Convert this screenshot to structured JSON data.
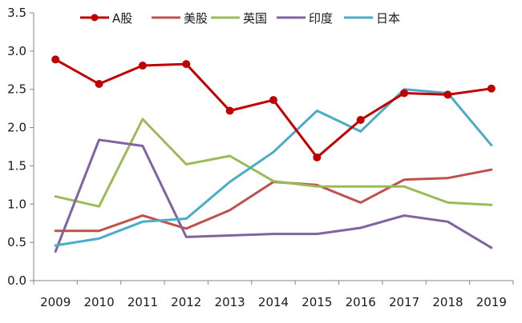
{
  "chart_data": {
    "type": "line",
    "title": "",
    "xlabel": "",
    "ylabel": "",
    "categories": [
      "2009",
      "2010",
      "2011",
      "2012",
      "2013",
      "2014",
      "2015",
      "2016",
      "2017",
      "2018",
      "2019"
    ],
    "ylim": [
      0,
      3.5
    ],
    "yticks": [
      "0.0",
      "0.5",
      "1.0",
      "1.5",
      "2.0",
      "2.5",
      "3.0",
      "3.5"
    ],
    "grid": false,
    "legend_position": "top",
    "series": [
      {
        "name": "A股",
        "color": "#c00000",
        "markers": true,
        "values": [
          2.89,
          2.57,
          2.81,
          2.83,
          2.22,
          2.36,
          1.61,
          2.1,
          2.45,
          2.43,
          2.51
        ]
      },
      {
        "name": "美股",
        "color": "#c0504d",
        "markers": false,
        "values": [
          0.65,
          0.65,
          0.85,
          0.68,
          0.92,
          1.29,
          1.25,
          1.02,
          1.32,
          1.34,
          1.45
        ]
      },
      {
        "name": "英国",
        "color": "#9bbb59",
        "markers": false,
        "values": [
          1.1,
          0.97,
          2.11,
          1.52,
          1.63,
          1.3,
          1.23,
          1.23,
          1.23,
          1.02,
          0.99
        ]
      },
      {
        "name": "印度",
        "color": "#8064a2",
        "markers": false,
        "values": [
          0.38,
          1.84,
          1.76,
          0.57,
          0.59,
          0.61,
          0.61,
          0.69,
          0.85,
          0.77,
          0.43
        ]
      },
      {
        "name": "日本",
        "color": "#4bacc6",
        "markers": false,
        "values": [
          0.46,
          0.55,
          0.77,
          0.81,
          1.29,
          1.68,
          2.22,
          1.95,
          2.5,
          2.45,
          1.77
        ]
      }
    ]
  }
}
